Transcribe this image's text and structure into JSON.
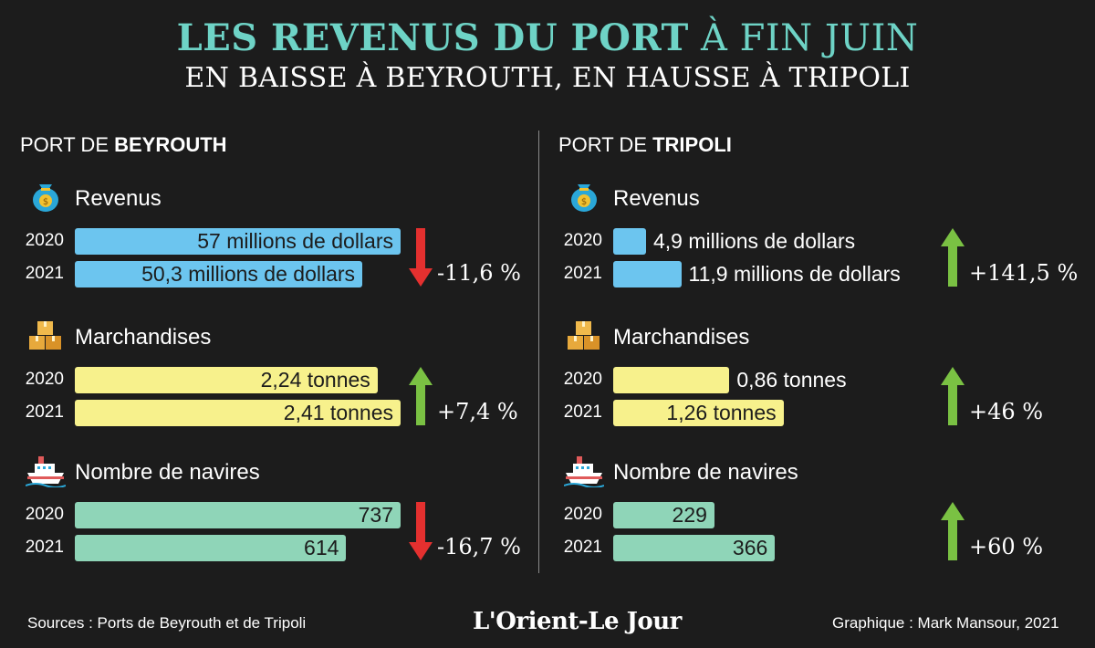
{
  "header": {
    "title_bold": "LES REVENUS DU PORT",
    "title_regular": " À FIN JUIN",
    "subtitle": "EN BAISSE À BEYROUTH, EN HAUSSE À TRIPOLI"
  },
  "ports": [
    {
      "prefix": "PORT DE ",
      "name": "BEYROUTH"
    },
    {
      "prefix": "PORT DE ",
      "name": "TRIPOLI"
    }
  ],
  "colors": {
    "revenus": "#6cc5ef",
    "marchandises": "#f7f18c",
    "navires": "#8fd5b8",
    "up": "#7ac143",
    "down": "#e4302f"
  },
  "icons": {
    "revenus": "money-bag-icon",
    "marchandises": "boxes-icon",
    "navires": "ship-icon"
  },
  "chart_data": [
    {
      "type": "bar",
      "port": "Beyrouth",
      "metric": "Revenus",
      "categories": [
        "2020",
        "2021"
      ],
      "values": [
        57,
        50.3
      ],
      "labels": [
        "57 millions de dollars",
        "50,3 millions de dollars"
      ],
      "change": "-11,6 %",
      "trend": "down"
    },
    {
      "type": "bar",
      "port": "Beyrouth",
      "metric": "Marchandises",
      "categories": [
        "2020",
        "2021"
      ],
      "values": [
        2.24,
        2.41
      ],
      "labels": [
        "2,24 tonnes",
        "2,41 tonnes"
      ],
      "change": "+7,4 %",
      "trend": "up"
    },
    {
      "type": "bar",
      "port": "Beyrouth",
      "metric": "Nombre de navires",
      "categories": [
        "2020",
        "2021"
      ],
      "values": [
        737,
        614
      ],
      "labels": [
        "737",
        "614"
      ],
      "change": "-16,7 %",
      "trend": "down"
    },
    {
      "type": "bar",
      "port": "Tripoli",
      "metric": "Revenus",
      "categories": [
        "2020",
        "2021"
      ],
      "values": [
        4.9,
        11.9
      ],
      "labels": [
        "4,9 millions de dollars",
        "11,9 millions de dollars"
      ],
      "change": "+141,5 %",
      "trend": "up"
    },
    {
      "type": "bar",
      "port": "Tripoli",
      "metric": "Marchandises",
      "categories": [
        "2020",
        "2021"
      ],
      "values": [
        0.86,
        1.26
      ],
      "labels": [
        "0,86 tonnes",
        "1,26 tonnes"
      ],
      "change": "+46 %",
      "trend": "up"
    },
    {
      "type": "bar",
      "port": "Tripoli",
      "metric": "Nombre de navires",
      "categories": [
        "2020",
        "2021"
      ],
      "values": [
        229,
        366
      ],
      "labels": [
        "229",
        "366"
      ],
      "change": "+60 %",
      "trend": "up"
    }
  ],
  "footer": {
    "sources": "Sources : Ports de Beyrouth et de Tripoli",
    "logo": "L'Orient-Le Jour",
    "credit": "Graphique : Mark Mansour, 2021"
  }
}
